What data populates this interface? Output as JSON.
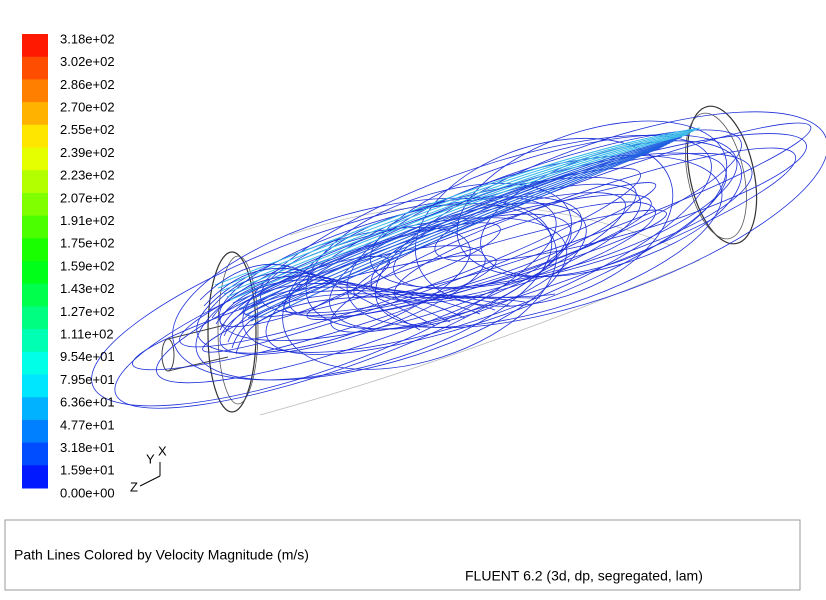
{
  "colorbar": {
    "labels": [
      "3.18e+02",
      "3.02e+02",
      "2.86e+02",
      "2.70e+02",
      "2.55e+02",
      "2.39e+02",
      "2.23e+02",
      "2.07e+02",
      "1.91e+02",
      "1.75e+02",
      "1.59e+02",
      "1.43e+02",
      "1.27e+02",
      "1.11e+02",
      "9.54e+01",
      "7.95e+01",
      "6.36e+01",
      "4.77e+01",
      "3.18e+01",
      "1.59e+01",
      "0.00e+00"
    ]
  },
  "axes_triad": {
    "y": "Y",
    "x": "X",
    "z": "Z"
  },
  "caption": {
    "title": "Path Lines Colored by Velocity Magnitude (m/s)",
    "solver": "FLUENT 6.2 (3d, dp, segregated, lam)"
  }
}
